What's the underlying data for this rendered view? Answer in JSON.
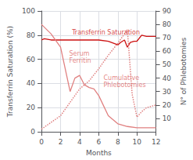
{
  "chart_data": {
    "type": "line",
    "xlabel": "Months",
    "ylabel": "Transferrin Saturation (%)",
    "y2label": "N° of Phlebotomies",
    "xlim": [
      0,
      12
    ],
    "xticks": [
      0,
      2,
      4,
      6,
      8,
      10,
      12
    ],
    "ylim": [
      0,
      100
    ],
    "yticks": [
      0,
      20,
      40,
      60,
      80,
      100
    ],
    "y2lim": [
      0,
      90
    ],
    "y2ticks": [
      10,
      20,
      30,
      40,
      50,
      60,
      70,
      80,
      90
    ],
    "grid": true,
    "series": [
      {
        "x": [
          0,
          0.3,
          1,
          2,
          3,
          4,
          5,
          6,
          7,
          8,
          8.3,
          8.7,
          9,
          9.3,
          9.7,
          10,
          10.5,
          11,
          12
        ],
        "values": [
          76,
          77,
          76,
          76,
          76,
          76,
          76,
          76,
          75,
          72,
          74,
          76,
          70,
          74,
          75,
          75,
          80,
          79,
          79
        ],
        "color": "#cc1111",
        "axis": "y",
        "line_style": "solid"
      },
      {
        "x": [
          0,
          1,
          2,
          3,
          3.5,
          4,
          4.5,
          5,
          5.5,
          6,
          7,
          8,
          9,
          10,
          11,
          12
        ],
        "values": [
          80,
          73,
          63,
          30,
          40,
          42,
          35,
          33,
          32,
          27,
          12,
          6,
          4,
          3,
          3,
          3
        ],
        "color": "#e08080",
        "axis": "y2",
        "line_style": "solid"
      },
      {
        "x": [
          0,
          1,
          2,
          3,
          4,
          5,
          6,
          7,
          8,
          9,
          9.5,
          10,
          10.5,
          11,
          12
        ],
        "values": [
          2,
          7,
          12,
          22,
          32,
          38,
          47,
          57,
          66,
          76,
          28,
          11,
          15,
          18,
          20
        ],
        "color": "#e08080",
        "axis": "y2",
        "line_style": "dotted"
      }
    ],
    "annotations": [
      {
        "text": "Transferrin Saturation",
        "x": 3.2,
        "y": 79,
        "color": "#cc1111"
      },
      {
        "text": "Serum\nFerritin",
        "x": 2.9,
        "y": 56,
        "color": "#dd6666"
      },
      {
        "text": "Cumulative\nPhlebotomies",
        "x": 6.5,
        "y": 36,
        "color": "#dd6666"
      }
    ]
  }
}
